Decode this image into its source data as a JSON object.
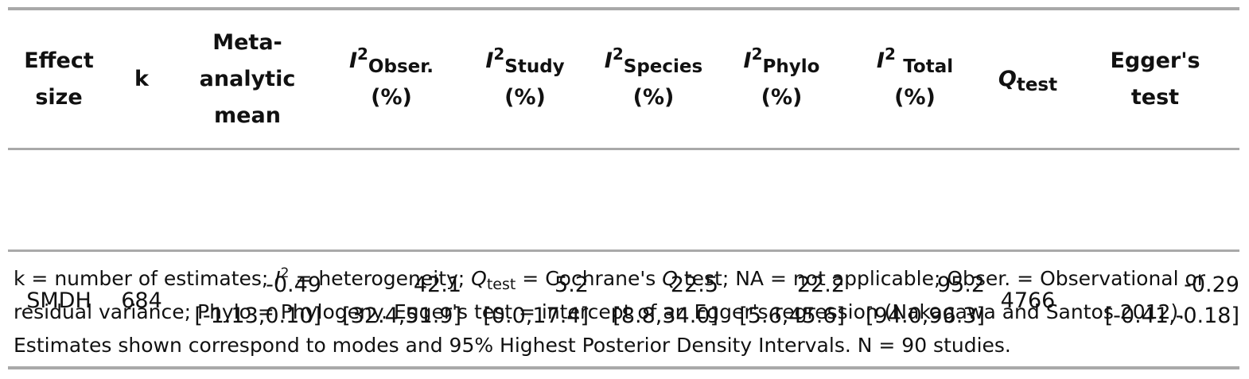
{
  "table": {
    "headers": {
      "effect_size": [
        "Effect",
        "size"
      ],
      "k": "k",
      "mean": [
        "Meta-",
        "analytic",
        "mean"
      ],
      "i2_obser": {
        "symbol": "I",
        "sup": "2",
        "sub": "Obser.",
        "unit": "(%)"
      },
      "i2_study": {
        "symbol": "I",
        "sup": "2",
        "sub": "Study",
        "unit": "(%)"
      },
      "i2_species": {
        "symbol": "I",
        "sup": "2",
        "sub": "Species",
        "unit": "(%)"
      },
      "i2_phylo": {
        "symbol": "I",
        "sup": "2",
        "sub": "Phylo",
        "unit": "(%)"
      },
      "i2_total": {
        "symbol": "I",
        "sup": "2",
        "sub": "Total",
        "unit": "(%)"
      },
      "q_test": {
        "symbol": "Q",
        "sub": "test"
      },
      "egger": [
        "Egger's",
        "test"
      ]
    },
    "rows": [
      {
        "effect_size": "SMDH",
        "k": "684",
        "mean": {
          "estimate": "-0.49",
          "interval": "[-1.13,0.10]"
        },
        "i2_obser": {
          "estimate": "42.1",
          "interval": "[32.4,51.9]"
        },
        "i2_study": {
          "estimate": "5.2",
          "interval": "[0.0,17.4]"
        },
        "i2_species": {
          "estimate": "22.5",
          "interval": "[8.8,34.0]"
        },
        "i2_phylo": {
          "estimate": "22.2",
          "interval": "[5.6,45.6]"
        },
        "i2_total": {
          "estimate": "95.2",
          "interval": "[94.0,96.3]"
        },
        "q_test": "4766",
        "egger": {
          "estimate": "-0.29",
          "interval": "[-0.41,-0.18]"
        }
      }
    ]
  },
  "footnote": {
    "p1": "k = number of estimates; ",
    "i_symbol": "I",
    "i_sup": "2",
    "p2": " = heterogeneity; ",
    "q_symbol": "Q",
    "q_sub": "test",
    "p3": " = Cochrane's ",
    "q_word": "Q",
    "p4": " test; NA = not applicable; Obser. = Observational or residual variance; Phylo = Phylogeny. Egger's test = intercept of an Egger's regression (Nakagawa and Santos 2012). Estimates shown correspond to modes and 95% Highest Posterior Density Intervals. N = 90 studies."
  }
}
